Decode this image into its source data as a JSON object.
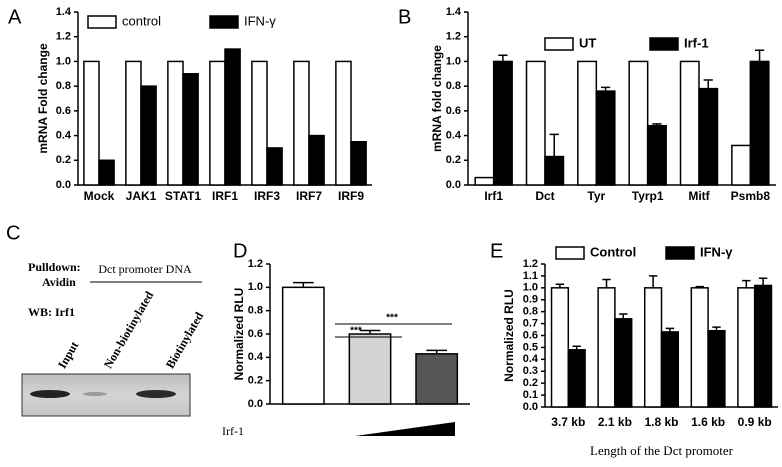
{
  "chart_data": [
    {
      "type": "bar",
      "panel": "A",
      "ylabel": "mRNA Fold change",
      "legend": "top",
      "categories": [
        "Mock",
        "JAK1",
        "STAT1",
        "IRF1",
        "IRF3",
        "IRF7",
        "IRF9"
      ],
      "series": [
        {
          "name": "control",
          "color": "#ffffff",
          "values": [
            1.0,
            1.0,
            1.0,
            1.0,
            1.0,
            1.0,
            1.0
          ]
        },
        {
          "name": "IFN-γ",
          "color": "#000000",
          "values": [
            0.2,
            0.8,
            0.9,
            1.1,
            0.3,
            0.4,
            0.35
          ]
        }
      ],
      "ylim": [
        0,
        1.4
      ],
      "yticks": [
        {
          "value": 0,
          "label": "0.0"
        },
        0.2,
        0.4,
        0.6,
        0.8,
        {
          "value": 1,
          "label": "1.0"
        },
        1.2,
        1.4
      ]
    },
    {
      "type": "bar",
      "panel": "B",
      "ylabel": "mRNA fold change",
      "legend": "top",
      "categories": [
        "Irf1",
        "Dct",
        "Tyr",
        "Tyrp1",
        "Mitf",
        "Psmb8"
      ],
      "series": [
        {
          "name": "UT",
          "color": "#ffffff",
          "values": [
            0.06,
            1.0,
            1.0,
            1.0,
            1.0,
            0.32
          ]
        },
        {
          "name": "Irf-1",
          "color": "#000000",
          "values": [
            1.0,
            0.23,
            0.76,
            0.48,
            0.78,
            1.0
          ],
          "errors": [
            0.05,
            0.18,
            0.03,
            0.015,
            0.07,
            0.09
          ]
        }
      ],
      "ylim": [
        0,
        1.4
      ],
      "yticks": [
        {
          "value": 0,
          "label": "0.0"
        },
        0.2,
        0.4,
        0.6,
        0.8,
        {
          "value": 1,
          "label": "1.0"
        },
        1.2,
        1.4
      ]
    },
    {
      "type": "bar",
      "panel": "D",
      "ylabel": "Normalized RLU",
      "xlabel": "Irf-1",
      "categories": [
        null,
        null,
        null
      ],
      "values": [
        1.0,
        0.6,
        0.43
      ],
      "errors": [
        0.04,
        0.03,
        0.03
      ],
      "colors": [
        "#ffffff",
        "#d3d3d3",
        "#555555"
      ],
      "annotations": [
        "***",
        "***"
      ],
      "ylim": [
        0,
        1.2
      ],
      "yticks": [
        {
          "value": 0,
          "label": "0.0"
        },
        0.2,
        0.4,
        0.6,
        0.8,
        {
          "value": 1,
          "label": "1.0"
        },
        1.2
      ]
    },
    {
      "type": "bar",
      "panel": "E",
      "ylabel": "Normalized RLU",
      "xlabel": "Length of the Dct promoter",
      "legend": "top",
      "categories": [
        "3.7 kb",
        "2.1 kb",
        "1.8 kb",
        "1.6 kb",
        "0.9 kb"
      ],
      "series": [
        {
          "name": "Control",
          "color": "#ffffff",
          "values": [
            1.0,
            1.0,
            1.0,
            1.0,
            1.0
          ],
          "errors": [
            0.03,
            0.07,
            0.1,
            0.01,
            0.06
          ]
        },
        {
          "name": "IFN-γ",
          "color": "#000000",
          "values": [
            0.48,
            0.74,
            0.63,
            0.64,
            1.02
          ],
          "errors": [
            0.03,
            0.04,
            0.03,
            0.03,
            0.06
          ]
        }
      ],
      "ylim": [
        0,
        1.2
      ],
      "yticks": [
        {
          "value": 0,
          "label": "0.0"
        },
        0.1,
        0.2,
        0.3,
        0.4,
        0.5,
        0.6,
        0.7,
        0.8,
        0.9,
        {
          "value": 1,
          "label": "1.0"
        },
        1.1,
        1.2
      ]
    }
  ],
  "blot": {
    "panel": "C",
    "pulldown": "Pulldown:",
    "avidin": "Avidin",
    "wb": "WB: Irf1",
    "probe": "Dct promoter DNA",
    "lanes": [
      "Input",
      "Non-biotinylated",
      "Biotinylated"
    ]
  }
}
